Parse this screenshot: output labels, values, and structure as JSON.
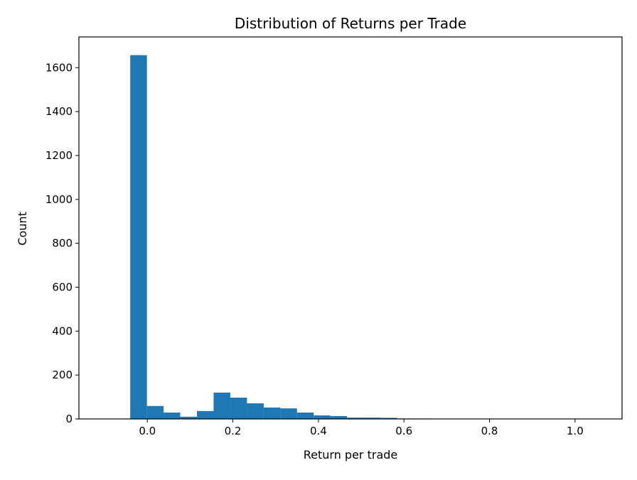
{
  "chart_data": {
    "type": "bar",
    "subtype": "histogram",
    "title": "Distribution of Returns per Trade",
    "xlabel": "Return per trade",
    "ylabel": "Count",
    "xlim": [
      -0.16,
      1.11
    ],
    "ylim": [
      0,
      1740
    ],
    "xticks": [
      0.0,
      0.2,
      0.4,
      0.6,
      0.8,
      1.0
    ],
    "xtick_labels": [
      "0.0",
      "0.2",
      "0.4",
      "0.6",
      "0.8",
      "1.0"
    ],
    "yticks": [
      0,
      200,
      400,
      600,
      800,
      1000,
      1200,
      1400,
      1600
    ],
    "ytick_labels": [
      "0",
      "200",
      "400",
      "600",
      "800",
      "1000",
      "1200",
      "1400",
      "1600"
    ],
    "bin_start": -0.118,
    "bin_width": 0.039,
    "counts": [
      1,
      0,
      1657,
      59,
      29,
      10,
      36,
      120,
      97,
      71,
      52,
      48,
      29,
      16,
      13,
      6,
      6,
      5,
      2,
      2,
      1,
      1,
      1,
      0,
      0,
      0,
      1,
      0,
      0,
      1
    ],
    "color": "#1f77b4",
    "grid": false
  }
}
